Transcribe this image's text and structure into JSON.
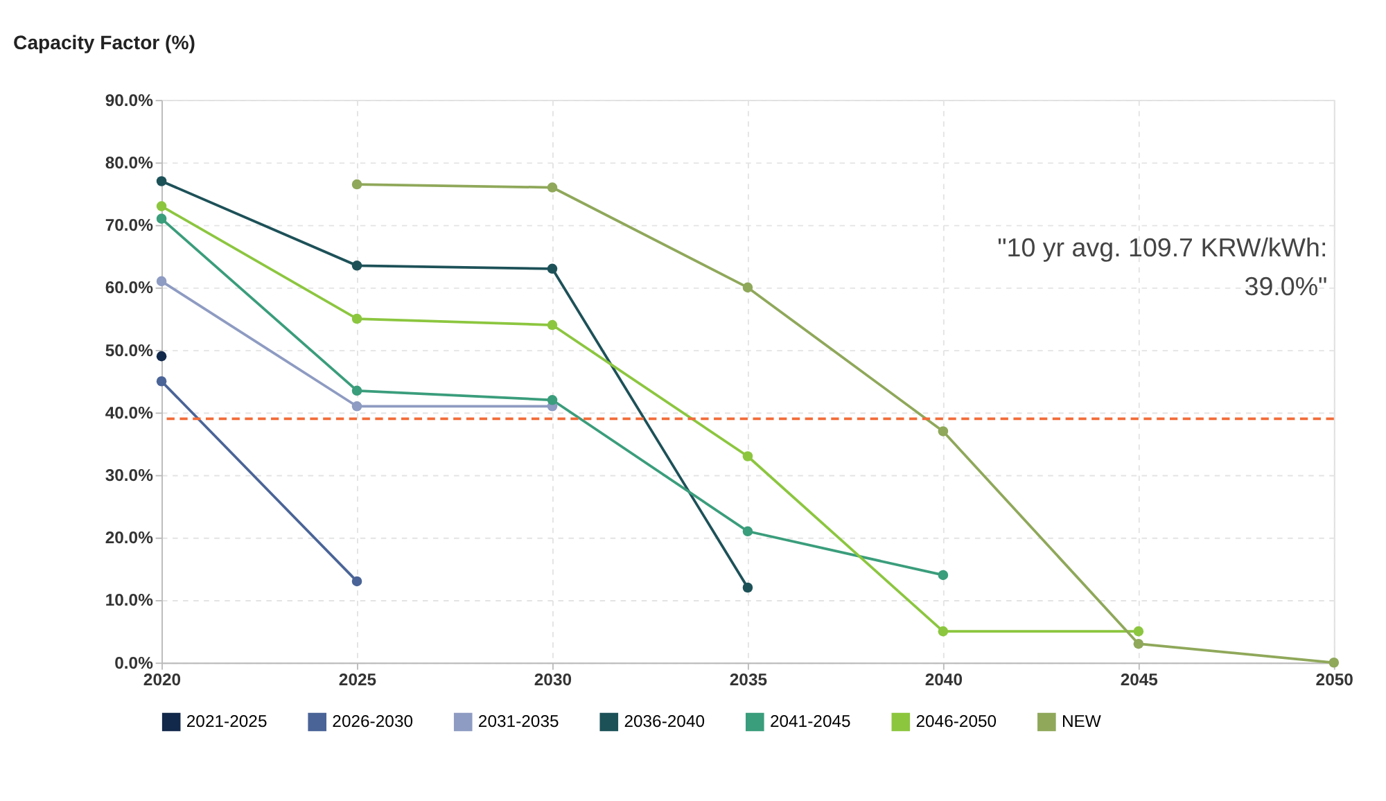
{
  "chart_data": {
    "type": "line",
    "title": "Capacity Factor (%)",
    "x": [
      2020,
      2025,
      2030,
      2035,
      2040,
      2045,
      2050
    ],
    "xlim": [
      2020,
      2050
    ],
    "xticks": [
      2020,
      2025,
      2030,
      2035,
      2040,
      2045,
      2050
    ],
    "ylim": [
      0,
      90
    ],
    "yticks": [
      {
        "value": 0,
        "label": "0.0%"
      },
      {
        "value": 10,
        "label": "10.0%"
      },
      {
        "value": 20,
        "label": "20.0%"
      },
      {
        "value": 30,
        "label": "30.0%"
      },
      {
        "value": 40,
        "label": "40.0%"
      },
      {
        "value": 50,
        "label": "50.0%"
      },
      {
        "value": 60,
        "label": "60.0%"
      },
      {
        "value": 70,
        "label": "70.0%"
      },
      {
        "value": 80,
        "label": "80.0%"
      },
      {
        "value": 90,
        "label": "90.0%"
      }
    ],
    "series": [
      {
        "name": "2021-2025",
        "color": "#13294b",
        "values": [
          49,
          null,
          null,
          null,
          null,
          null,
          null
        ]
      },
      {
        "name": "2026-2030",
        "color": "#4a6497",
        "values": [
          45,
          13,
          null,
          null,
          null,
          null,
          null
        ]
      },
      {
        "name": "2031-2035",
        "color": "#8e9bc2",
        "values": [
          61,
          41,
          41,
          null,
          null,
          null,
          null
        ]
      },
      {
        "name": "2036-2040",
        "color": "#1d5158",
        "values": [
          77,
          63.5,
          63,
          12,
          null,
          null,
          null
        ]
      },
      {
        "name": "2041-2045",
        "color": "#3a9d7c",
        "values": [
          71,
          43.5,
          42,
          21,
          14,
          null,
          null
        ]
      },
      {
        "name": "2046-2050",
        "color": "#8cc63f",
        "values": [
          73,
          55,
          54,
          33,
          5,
          5,
          null
        ]
      },
      {
        "name": "NEW",
        "color": "#8fa85a",
        "values": [
          null,
          76.5,
          76,
          60,
          37,
          3,
          0
        ]
      }
    ],
    "ref_lines": [
      {
        "axis": "y",
        "value": 39.0,
        "color": "#f26b38",
        "line_style": "dashed"
      }
    ],
    "annotations": [
      "\"10 yr avg. 109.7 KRW/kWh:\n39.0%\""
    ],
    "grid": true,
    "legend": "bottom",
    "marker": "circle",
    "line_style": "solid"
  }
}
